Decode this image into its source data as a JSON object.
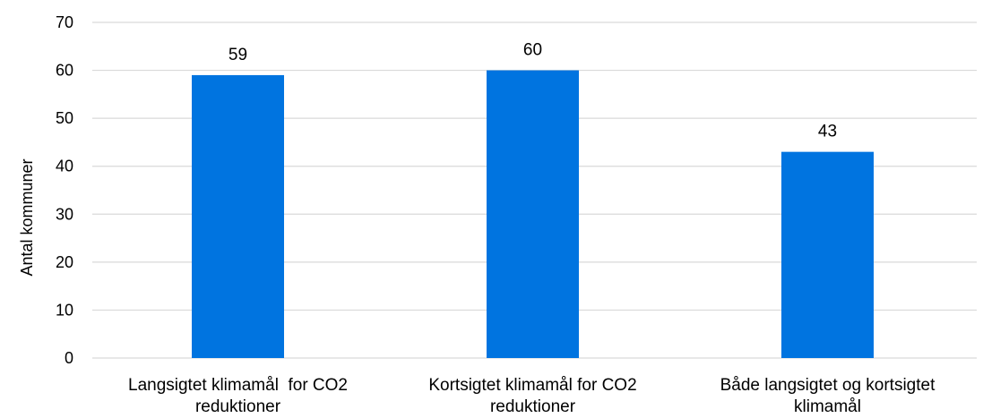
{
  "chart_data": {
    "type": "bar",
    "categories": [
      "Langsigtet klimamål  for CO2 reduktioner",
      "Kortsigtet klimamål for CO2 reduktioner",
      "Både langsigtet og kortsigtet klimamål"
    ],
    "category_lines": [
      [
        "Langsigtet klimamål  for CO2",
        "reduktioner"
      ],
      [
        "Kortsigtet klimamål for CO2",
        "reduktioner"
      ],
      [
        "Både langsigtet og kortsigtet",
        "klimamål"
      ]
    ],
    "values": [
      59,
      60,
      43
    ],
    "data_labels": [
      "59",
      "60",
      "43"
    ],
    "title": "",
    "xlabel": "",
    "ylabel": "Antal kommuner",
    "ylim": [
      0,
      70
    ],
    "yticks": [
      0,
      10,
      20,
      30,
      40,
      50,
      60,
      70
    ],
    "grid": true,
    "legend": "none",
    "colors": {
      "bar": "#0074E0",
      "grid": "#D9D9D9",
      "axis": "#D9D9D9"
    }
  }
}
